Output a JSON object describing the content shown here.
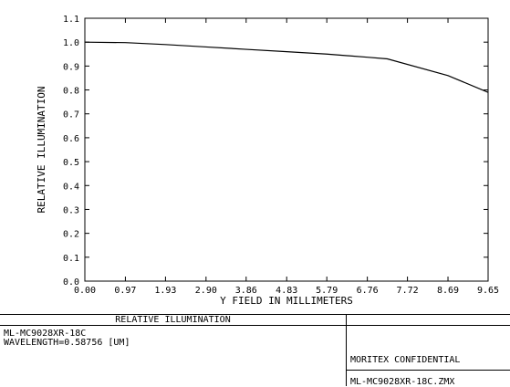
{
  "chart_data": {
    "type": "line",
    "title": "RELATIVE ILLUMINATION",
    "xlabel": "Y FIELD IN MILLIMETERS",
    "ylabel": "RELATIVE ILLUMINATION",
    "xlim": [
      0.0,
      9.65
    ],
    "ylim": [
      0.0,
      1.1
    ],
    "x_ticks": [
      "0.00",
      "0.97",
      "1.93",
      "2.90",
      "3.86",
      "4.83",
      "5.79",
      "6.76",
      "7.72",
      "8.69",
      "9.65"
    ],
    "y_ticks": [
      "0.0",
      "0.1",
      "0.2",
      "0.3",
      "0.4",
      "0.5",
      "0.6",
      "0.7",
      "0.8",
      "0.9",
      "1.0",
      "1.1"
    ],
    "grid": false,
    "series": [
      {
        "x": [
          0.0,
          0.97,
          1.93,
          2.9,
          3.86,
          4.83,
          5.79,
          6.76,
          7.24,
          8.69,
          9.65
        ],
        "y": [
          1.0,
          0.998,
          0.99,
          0.98,
          0.97,
          0.96,
          0.95,
          0.937,
          0.93,
          0.86,
          0.79
        ]
      }
    ]
  },
  "info": {
    "title_bar": "RELATIVE ILLUMINATION",
    "lens_name": "ML-MC9028XR-18C",
    "wavelength": "WAVELENGTH=0.58756 [UM]",
    "confidential": "MORITEX CONFIDENTIAL",
    "file_name": "ML-MC9028XR-18C.ZMX"
  },
  "colors": {
    "line": "#000000",
    "background": "#ffffff"
  }
}
